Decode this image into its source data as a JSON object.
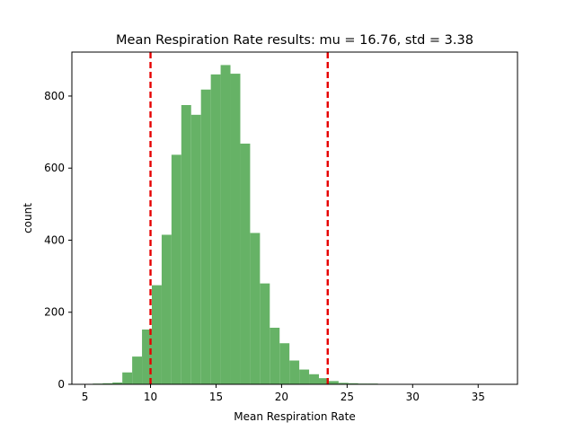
{
  "chart_data": {
    "type": "histogram",
    "title": "Mean Respiration Rate results: mu = 16.76,  std = 3.38",
    "xlabel": "Mean Respiration Rate",
    "ylabel": "count",
    "xlim": [
      4.0,
      38.0
    ],
    "ylim": [
      0,
      922
    ],
    "xticks": [
      5,
      10,
      15,
      20,
      25,
      30,
      35
    ],
    "yticks": [
      0,
      200,
      400,
      600,
      800
    ],
    "bar_color": "#66b266",
    "bins": {
      "start": 5.6,
      "width": 0.75,
      "counts": [
        2,
        3,
        5,
        33,
        77,
        152,
        275,
        415,
        637,
        775,
        748,
        818,
        860,
        886,
        862,
        668,
        420,
        280,
        157,
        114,
        66,
        41,
        28,
        17,
        9,
        4,
        3,
        2,
        2,
        1,
        1,
        1,
        1,
        1,
        1,
        1,
        1,
        1,
        1,
        1,
        1,
        1
      ]
    },
    "vlines": [
      {
        "x": 10.0,
        "color": "#e60000",
        "style": "dashed"
      },
      {
        "x": 23.52,
        "color": "#e60000",
        "style": "dashed"
      }
    ],
    "grid": false,
    "legend": "none"
  }
}
